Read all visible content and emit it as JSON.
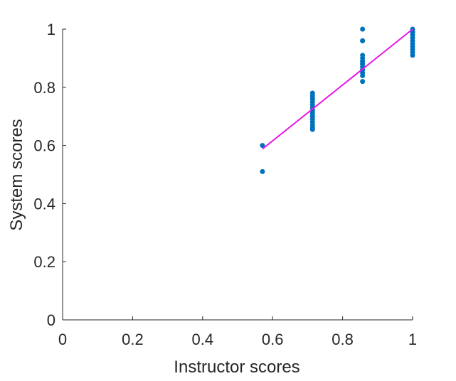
{
  "chart_data": {
    "type": "scatter",
    "xlabel": "Instructor scores",
    "ylabel": "System scores",
    "xlim": [
      0,
      1
    ],
    "ylim": [
      0,
      1
    ],
    "xticks": [
      "0",
      "0.2",
      "0.4",
      "0.6",
      "0.8",
      "1"
    ],
    "yticks": [
      "0",
      "0.2",
      "0.4",
      "0.6",
      "0.8",
      "1"
    ],
    "grid": false,
    "legend": "none",
    "series": [
      {
        "kind": "points",
        "color": "#0072BD",
        "x": [
          0.571,
          0.571,
          0.714,
          0.714,
          0.714,
          0.714,
          0.714,
          0.714,
          0.714,
          0.714,
          0.714,
          0.714,
          0.714,
          0.714,
          0.714,
          0.714,
          0.714,
          0.714,
          0.857,
          0.857,
          0.857,
          0.857,
          0.857,
          0.857,
          0.857,
          0.857,
          0.857,
          0.857,
          0.857,
          0.857,
          0.857,
          0.857,
          0.857,
          1.0,
          1.0,
          1.0,
          1.0,
          1.0,
          1.0,
          1.0,
          1.0,
          1.0,
          1.0,
          1.0
        ],
        "y": [
          0.6,
          0.51,
          0.78,
          0.77,
          0.76,
          0.75,
          0.74,
          0.73,
          0.72,
          0.71,
          0.7,
          0.69,
          0.68,
          0.67,
          0.66,
          0.655,
          0.72,
          0.7,
          1.0,
          0.96,
          0.91,
          0.9,
          0.89,
          0.88,
          0.87,
          0.86,
          0.85,
          0.84,
          0.82,
          0.96,
          0.89,
          0.88,
          0.86,
          1.0,
          0.99,
          0.98,
          0.97,
          0.96,
          0.95,
          0.94,
          0.93,
          0.92,
          0.91,
          0.99
        ]
      },
      {
        "kind": "fit-line",
        "color": "#E815E8",
        "x": [
          0.571,
          1.0
        ],
        "y": [
          0.588,
          1.0
        ]
      }
    ]
  }
}
